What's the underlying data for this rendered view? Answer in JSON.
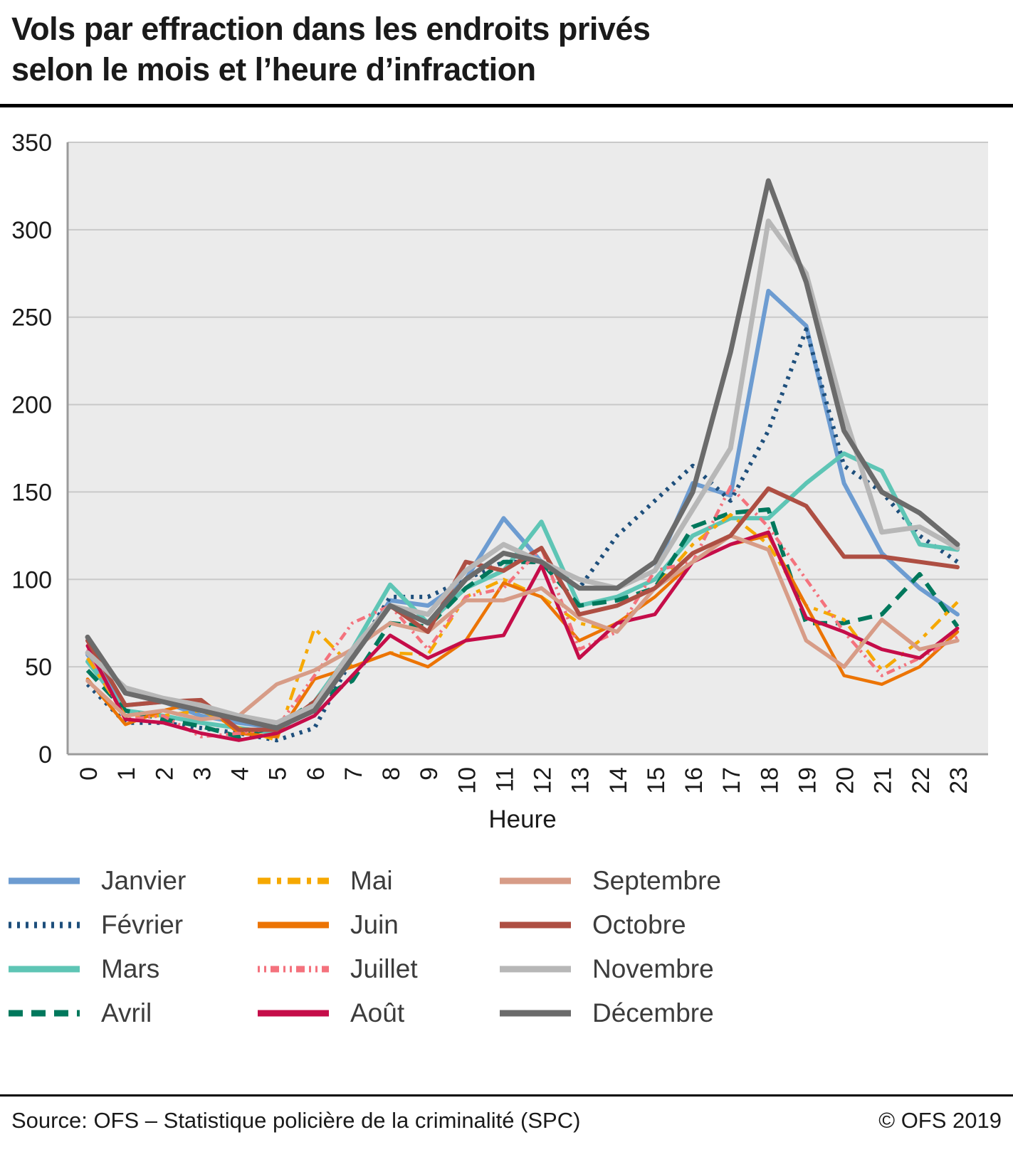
{
  "title": {
    "line1": "Vols par effraction dans les endroits privés",
    "line2": "selon le mois et l’heure d’infraction"
  },
  "footer": {
    "source": "Source: OFS – Statistique policière de la criminalité (SPC)",
    "copyright": "© OFS 2019"
  },
  "chart_data": {
    "type": "line",
    "title": "Vols par effraction dans les endroits privés selon le mois et l’heure d’infraction",
    "xlabel": "Heure",
    "ylabel": "",
    "x": [
      0,
      1,
      2,
      3,
      4,
      5,
      6,
      7,
      8,
      9,
      10,
      11,
      12,
      13,
      14,
      15,
      16,
      17,
      18,
      19,
      20,
      21,
      22,
      23
    ],
    "ylim": [
      0,
      350
    ],
    "yticks": [
      0,
      50,
      100,
      150,
      200,
      250,
      300,
      350
    ],
    "grid": true,
    "legend_position": "bottom",
    "plot_bg": "#ebebeb",
    "grid_color": "#c9c9c9",
    "axis_color": "#9b9b9b",
    "series": [
      {
        "id": "janvier",
        "name": "Janvier",
        "color": "#6d9cd1",
        "width": 6,
        "dash": "",
        "values": [
          57,
          28,
          30,
          22,
          18,
          15,
          25,
          55,
          88,
          85,
          100,
          135,
          110,
          95,
          95,
          105,
          155,
          148,
          265,
          245,
          155,
          115,
          95,
          80
        ]
      },
      {
        "id": "fevrier",
        "name": "Février",
        "color": "#1e4f7c",
        "width": 6,
        "dash": "4 8",
        "values": [
          40,
          18,
          18,
          15,
          12,
          8,
          15,
          55,
          90,
          90,
          100,
          110,
          110,
          95,
          125,
          145,
          165,
          145,
          185,
          243,
          165,
          150,
          125,
          110
        ]
      },
      {
        "id": "mars",
        "name": "Mars",
        "color": "#5ec5b5",
        "width": 6,
        "dash": "",
        "values": [
          53,
          25,
          22,
          18,
          15,
          12,
          30,
          60,
          97,
          75,
          95,
          105,
          133,
          85,
          90,
          100,
          125,
          135,
          135,
          155,
          172,
          162,
          120,
          117
        ]
      },
      {
        "id": "avril",
        "name": "Avril",
        "color": "#00785c",
        "width": 6,
        "dash": "20 12",
        "values": [
          48,
          25,
          20,
          16,
          10,
          16,
          30,
          42,
          75,
          73,
          95,
          110,
          110,
          85,
          88,
          95,
          130,
          138,
          140,
          75,
          75,
          80,
          103,
          73
        ]
      },
      {
        "id": "mai",
        "name": "Mai",
        "color": "#f6a800",
        "width": 4.5,
        "dash": "18 9 6 9",
        "values": [
          55,
          22,
          22,
          25,
          15,
          8,
          72,
          50,
          58,
          57,
          90,
          100,
          90,
          75,
          70,
          95,
          120,
          137,
          120,
          85,
          77,
          48,
          65,
          87
        ]
      },
      {
        "id": "juin",
        "name": "Juin",
        "color": "#ec7404",
        "width": 4.5,
        "dash": "",
        "values": [
          43,
          17,
          25,
          30,
          12,
          10,
          43,
          50,
          58,
          50,
          65,
          98,
          90,
          65,
          75,
          90,
          110,
          120,
          125,
          85,
          45,
          40,
          50,
          70
        ]
      },
      {
        "id": "juillet",
        "name": "Juillet",
        "color": "#f4727d",
        "width": 4.5,
        "dash": "3 6 3 6 12 6",
        "values": [
          60,
          20,
          22,
          10,
          12,
          15,
          45,
          75,
          85,
          60,
          90,
          95,
          118,
          60,
          70,
          105,
          110,
          153,
          130,
          100,
          70,
          45,
          55,
          67
        ]
      },
      {
        "id": "aout",
        "name": "Août",
        "color": "#c50d49",
        "width": 5,
        "dash": "",
        "values": [
          62,
          20,
          18,
          12,
          8,
          12,
          22,
          45,
          68,
          55,
          65,
          68,
          108,
          55,
          75,
          80,
          110,
          120,
          127,
          78,
          70,
          60,
          55,
          72
        ]
      },
      {
        "id": "septembre",
        "name": "Septembre",
        "color": "#d79c87",
        "width": 5.5,
        "dash": "",
        "values": [
          42,
          22,
          25,
          20,
          22,
          40,
          48,
          60,
          75,
          70,
          88,
          88,
          95,
          78,
          70,
          95,
          110,
          125,
          117,
          65,
          50,
          77,
          60,
          65
        ]
      },
      {
        "id": "octobre",
        "name": "Octobre",
        "color": "#ae4f43",
        "width": 6,
        "dash": "",
        "values": [
          65,
          28,
          30,
          31,
          14,
          14,
          30,
          55,
          85,
          70,
          110,
          105,
          118,
          80,
          85,
          95,
          115,
          125,
          152,
          142,
          113,
          113,
          110,
          107
        ]
      },
      {
        "id": "novembre",
        "name": "Novembre",
        "color": "#b7b7b7",
        "width": 7,
        "dash": "",
        "values": [
          58,
          38,
          32,
          28,
          22,
          18,
          28,
          60,
          85,
          80,
          105,
          120,
          110,
          100,
          95,
          105,
          140,
          175,
          305,
          275,
          195,
          127,
          130,
          118
        ]
      },
      {
        "id": "decembre",
        "name": "Décembre",
        "color": "#6b6b6b",
        "width": 7,
        "dash": "",
        "values": [
          67,
          35,
          30,
          25,
          20,
          15,
          25,
          55,
          85,
          75,
          100,
          115,
          110,
          95,
          95,
          110,
          150,
          230,
          328,
          270,
          185,
          150,
          138,
          120
        ]
      }
    ]
  }
}
